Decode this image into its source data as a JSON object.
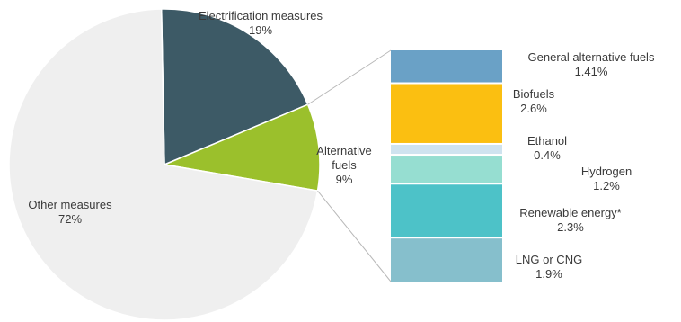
{
  "chart_data": [
    {
      "type": "pie",
      "slices": [
        {
          "label": "Electrification measures",
          "value": 19,
          "value_label": "19%",
          "color": "#3d5a66"
        },
        {
          "label": "Alternative fuels",
          "label_lines": [
            "Alternative",
            "fuels"
          ],
          "value": 9,
          "value_label": "9%",
          "color": "#9bc02c"
        },
        {
          "label": "Other measures",
          "value": 72,
          "value_label": "72%",
          "color": "#efefef"
        }
      ]
    },
    {
      "type": "bar",
      "stacked": true,
      "orientation": "vertical",
      "breakdown_of": "Alternative fuels",
      "series": [
        {
          "label": "General alternative fuels",
          "value": 1.41,
          "value_label": "1.41%",
          "color": "#6aa1c6"
        },
        {
          "label": "Biofuels",
          "value": 2.6,
          "value_label": "2.6%",
          "color": "#fbbf11"
        },
        {
          "label": "Ethanol",
          "value": 0.4,
          "value_label": "0.4%",
          "color": "#cfe3ef"
        },
        {
          "label": "Hydrogen",
          "value": 1.2,
          "value_label": "1.2%",
          "color": "#96ded1"
        },
        {
          "label": "Renewable energy*",
          "value": 2.3,
          "value_label": "2.3%",
          "color": "#4dc2c8"
        },
        {
          "label": "LNG or CNG",
          "value": 1.9,
          "value_label": "1.9%",
          "color": "#86bfcc"
        }
      ]
    }
  ]
}
